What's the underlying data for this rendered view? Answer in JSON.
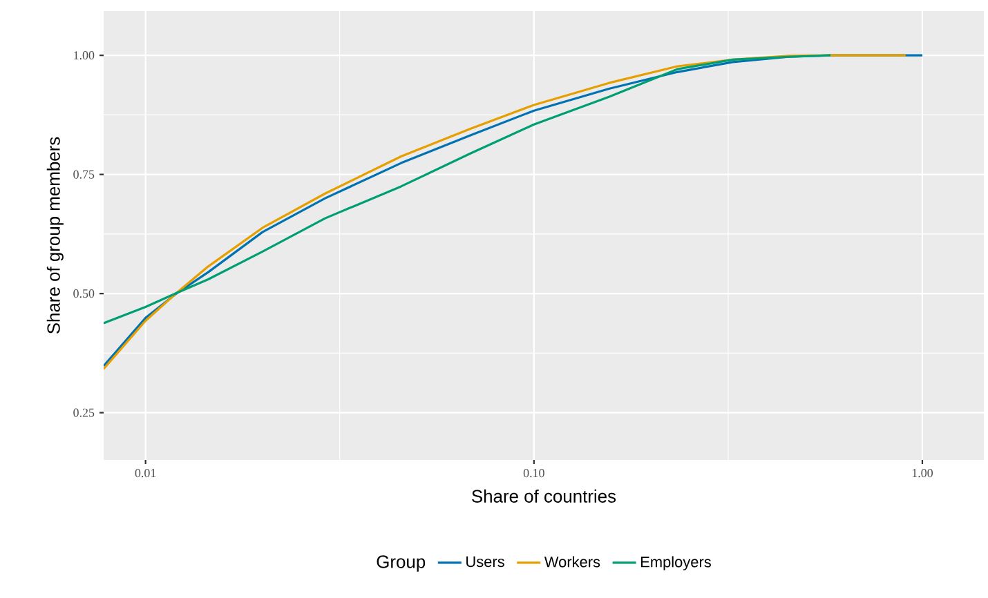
{
  "chart_data": {
    "type": "line",
    "xlabel": "Share of countries",
    "ylabel": "Share of group members",
    "legend_title": "Group",
    "legend": "bottom",
    "log": "x",
    "grid": true,
    "xlim": [
      0.0078,
      1.44
    ],
    "ylim": [
      0.151,
      1.093
    ],
    "xticks": [
      0.01,
      {
        "value": 0.1,
        "label": "0.10"
      },
      {
        "value": 1,
        "label": "1.00"
      }
    ],
    "yticks": [
      0.25,
      {
        "value": 0.5,
        "label": "0.50"
      },
      0.75,
      {
        "value": 1,
        "label": "1.00"
      }
    ],
    "series": [
      {
        "name": "Users",
        "color": "#0072b2",
        "x": [
          0.0078,
          0.01,
          0.012,
          0.0145,
          0.02,
          0.029,
          0.0455,
          0.0686,
          0.1,
          0.156,
          0.234,
          0.325,
          0.452,
          0.578,
          1.0
        ],
        "values": [
          0.348,
          0.449,
          0.5,
          0.545,
          0.629,
          0.7,
          0.774,
          0.832,
          0.884,
          0.93,
          0.965,
          0.986,
          0.997,
          1.0,
          1.0
        ]
      },
      {
        "name": "Workers",
        "color": "#e69f00",
        "x": [
          0.0078,
          0.01,
          0.012,
          0.0145,
          0.02,
          0.029,
          0.0455,
          0.0686,
          0.1,
          0.156,
          0.234,
          0.325,
          0.452,
          0.578,
          0.906
        ],
        "values": [
          0.342,
          0.443,
          0.501,
          0.557,
          0.638,
          0.71,
          0.788,
          0.846,
          0.896,
          0.942,
          0.977,
          0.991,
          0.999,
          1.0,
          1.0
        ]
      },
      {
        "name": "Employers",
        "color": "#009e73",
        "x": [
          0.0078,
          0.01,
          0.012,
          0.0145,
          0.02,
          0.029,
          0.0455,
          0.0686,
          0.1,
          0.156,
          0.234,
          0.325,
          0.452,
          0.58
        ],
        "values": [
          0.438,
          0.472,
          0.501,
          0.53,
          0.588,
          0.658,
          0.725,
          0.794,
          0.855,
          0.913,
          0.971,
          0.991,
          0.997,
          1.0
        ]
      }
    ]
  }
}
